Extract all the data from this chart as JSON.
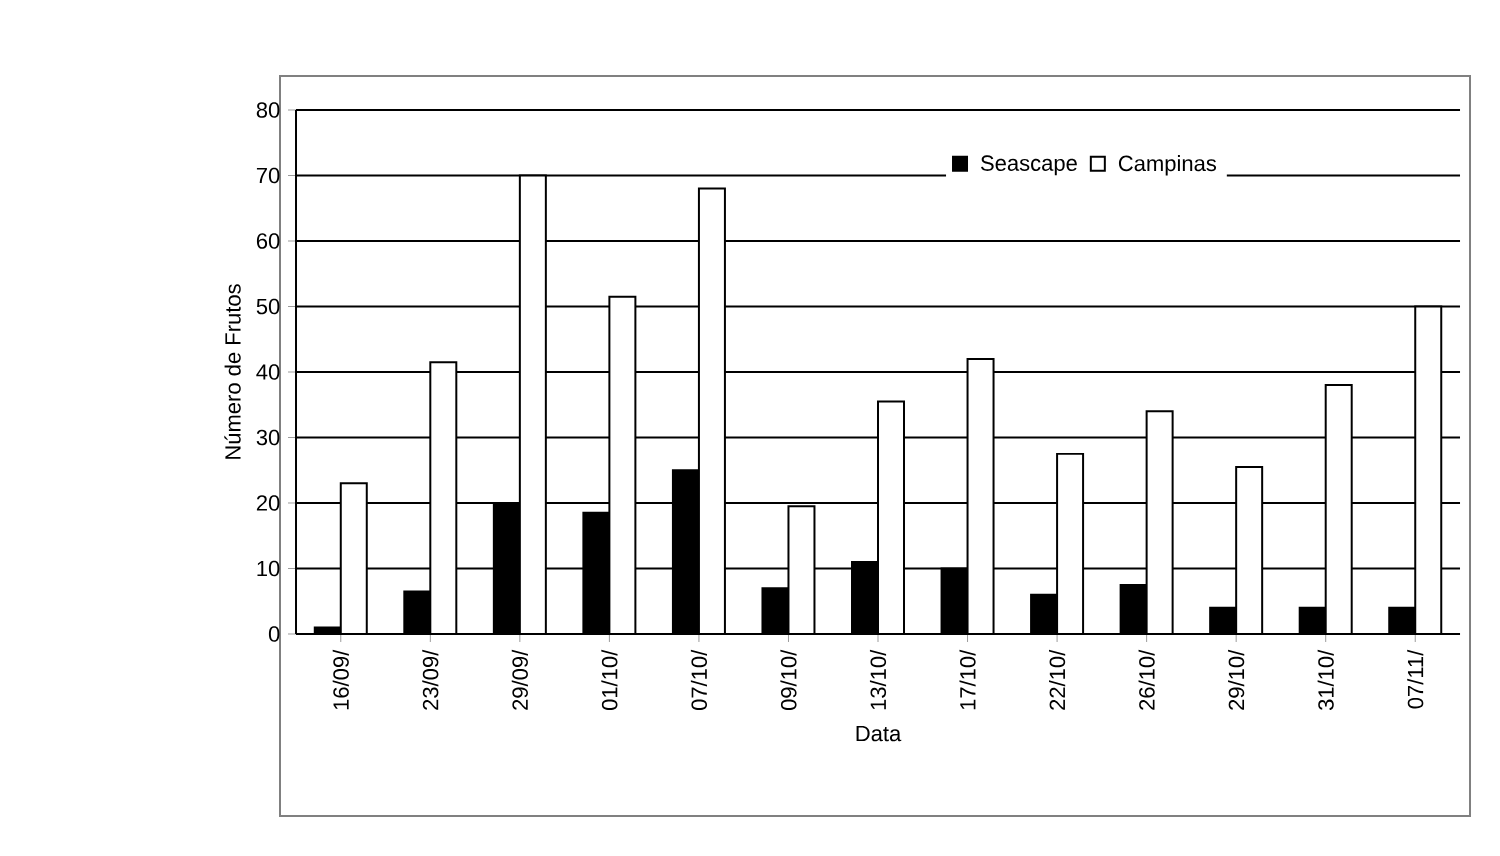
{
  "chart_data": {
    "type": "bar",
    "xlabel": "Data",
    "ylabel": "Número de Frutos",
    "categories": [
      "16/09/",
      "23/09/",
      "29/09/",
      "01/10/",
      "07/10/",
      "09/10/",
      "13/10/",
      "17/10/",
      "22/10/",
      "26/10/",
      "29/10/",
      "31/10/",
      "07/11/"
    ],
    "series": [
      {
        "name": "Seascape",
        "color": "#000000",
        "values": [
          1,
          6.5,
          20,
          18.5,
          25,
          7,
          11,
          10,
          6,
          7.5,
          4,
          4,
          4
        ]
      },
      {
        "name": "Campinas",
        "color": "#ffffff",
        "values": [
          23,
          41.5,
          70,
          51.5,
          68,
          19.5,
          35.5,
          42,
          27.5,
          34,
          25.5,
          38,
          50
        ]
      }
    ],
    "ylim": [
      0,
      80
    ],
    "yticks": [
      0,
      10,
      20,
      30,
      40,
      50,
      60,
      70,
      80
    ],
    "grid": "y",
    "legend": "top right"
  }
}
